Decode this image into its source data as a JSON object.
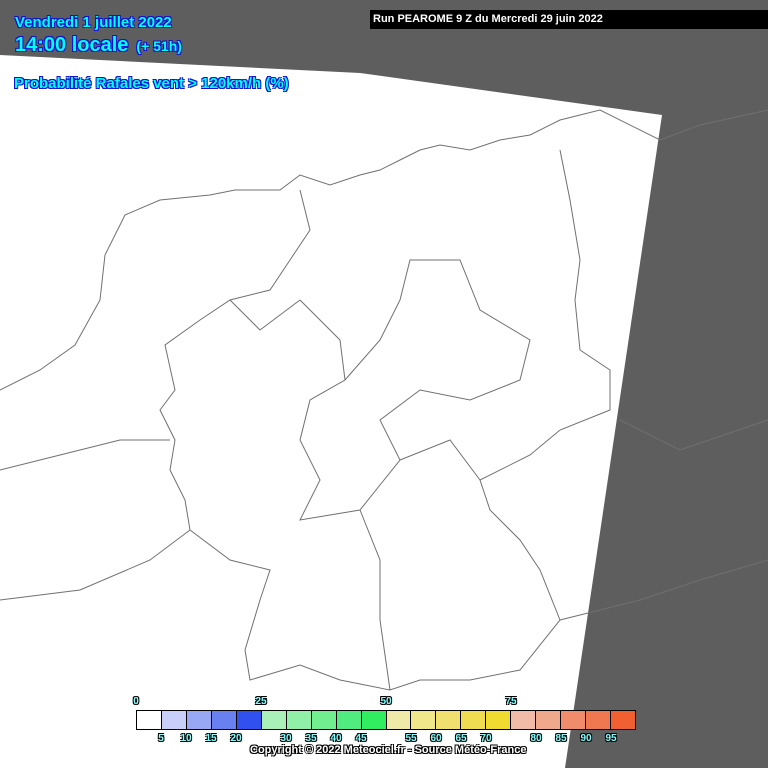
{
  "header": {
    "date": "Vendredi 1 juillet 2022",
    "time": "14:00 locale",
    "lead": "(+ 51h)",
    "title": "Probabilité Rafales vent > 120km/h (%)",
    "run": "Run PEAROME 9 Z du Mercredi 29 juin 2022"
  },
  "map": {
    "background_color": "#5e5e5e",
    "domain_color": "#ffffff",
    "border_color": "#707070"
  },
  "legend": {
    "colors": [
      "#ffffff",
      "#c8d0fa",
      "#98a8f5",
      "#6880f0",
      "#3050f0",
      "#a8f0b8",
      "#90f0a8",
      "#70ee90",
      "#50ec80",
      "#30ee60",
      "#f0eaa8",
      "#f0e68a",
      "#f0e070",
      "#f0dc50",
      "#f0dc30",
      "#f0bca8",
      "#f0a88c",
      "#f08c6c",
      "#f07850",
      "#f06030"
    ],
    "top_labels": [
      "0",
      "25",
      "50",
      "75"
    ],
    "bottom_labels": [
      "5",
      "10",
      "15",
      "20",
      "30",
      "35",
      "40",
      "45",
      "55",
      "60",
      "65",
      "70",
      "80",
      "85",
      "90",
      "95"
    ]
  },
  "copyright": "Copyright © 2022 Meteociel.fr - Source Météo-France"
}
